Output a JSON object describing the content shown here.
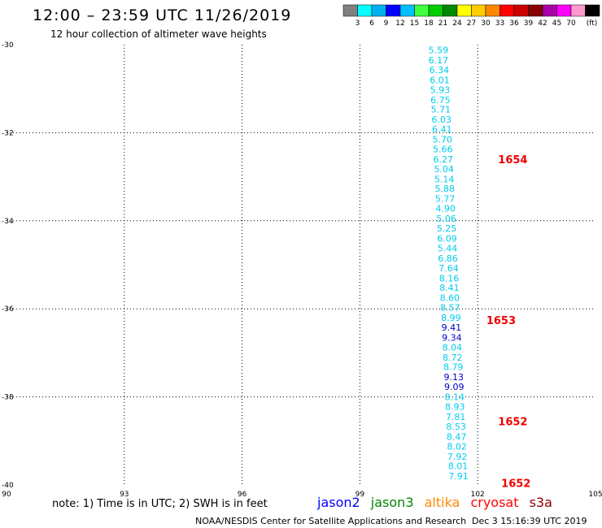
{
  "header": {
    "title": "12:00 – 23:59 UTC 11/26/2019",
    "subtitle": "12 hour collection of altimeter wave heights"
  },
  "colorbar": {
    "unit": "(ft)",
    "colors": [
      "#808080",
      "#00ffff",
      "#00b0f0",
      "#0000ff",
      "#00c0ff",
      "#40ff40",
      "#00cc00",
      "#008800",
      "#ffff00",
      "#ffcc00",
      "#ff8800",
      "#ff0000",
      "#cc0000",
      "#880000",
      "#aa00aa",
      "#ff00ff",
      "#ff99cc",
      "#000000"
    ],
    "labels": [
      "3",
      "6",
      "9",
      "12",
      "15",
      "18",
      "21",
      "24",
      "27",
      "30",
      "33",
      "36",
      "39",
      "42",
      "45",
      "70"
    ]
  },
  "chart_data": {
    "type": "scatter",
    "title": "12:00 – 23:59 UTC 11/26/2019",
    "subtitle": "12 hour collection of altimeter wave heights",
    "xlim": [
      90,
      105
    ],
    "ylim": [
      -40,
      -30
    ],
    "x_ticks": [
      "90",
      "93",
      "96",
      "99",
      "102",
      "105"
    ],
    "y_ticks": [
      "-30",
      "-32",
      "-34",
      "-36",
      "-38",
      "-40"
    ],
    "grid": true,
    "points": [
      {
        "lon": 101.0,
        "lat": -30.12,
        "swh": "5.59",
        "color": "#00ccee"
      },
      {
        "lon": 101.0,
        "lat": -30.35,
        "swh": "6.17",
        "color": "#00ccee"
      },
      {
        "lon": 101.02,
        "lat": -30.57,
        "swh": "6.34",
        "color": "#00ccee"
      },
      {
        "lon": 101.03,
        "lat": -30.8,
        "swh": "6.01",
        "color": "#00ccee"
      },
      {
        "lon": 101.04,
        "lat": -31.02,
        "swh": "5.93",
        "color": "#00ccee"
      },
      {
        "lon": 101.05,
        "lat": -31.25,
        "swh": "6.75",
        "color": "#00ccee"
      },
      {
        "lon": 101.06,
        "lat": -31.47,
        "swh": "5.71",
        "color": "#00ccee"
      },
      {
        "lon": 101.08,
        "lat": -31.7,
        "swh": "6.03",
        "color": "#00ccee"
      },
      {
        "lon": 101.09,
        "lat": -31.92,
        "swh": "6.41",
        "color": "#00ccee"
      },
      {
        "lon": 101.1,
        "lat": -32.15,
        "swh": "5.70",
        "color": "#00ccee"
      },
      {
        "lon": 101.11,
        "lat": -32.37,
        "swh": "5.66",
        "color": "#00ccee"
      },
      {
        "lon": 101.12,
        "lat": -32.6,
        "swh": "6.27",
        "color": "#00ccee"
      },
      {
        "lon": 101.14,
        "lat": -32.82,
        "swh": "5.04",
        "color": "#00ccee"
      },
      {
        "lon": 101.15,
        "lat": -33.05,
        "swh": "5.14",
        "color": "#00ccee"
      },
      {
        "lon": 101.16,
        "lat": -33.27,
        "swh": "5.88",
        "color": "#00ccee"
      },
      {
        "lon": 101.17,
        "lat": -33.5,
        "swh": "5.77",
        "color": "#00ccee"
      },
      {
        "lon": 101.18,
        "lat": -33.72,
        "swh": "4.90",
        "color": "#00ccee"
      },
      {
        "lon": 101.2,
        "lat": -33.95,
        "swh": "5.06",
        "color": "#00ccee"
      },
      {
        "lon": 101.21,
        "lat": -34.17,
        "swh": "5.25",
        "color": "#00ccee"
      },
      {
        "lon": 101.22,
        "lat": -34.4,
        "swh": "6.09",
        "color": "#00ccee"
      },
      {
        "lon": 101.23,
        "lat": -34.62,
        "swh": "5.44",
        "color": "#00ccee"
      },
      {
        "lon": 101.24,
        "lat": -34.85,
        "swh": "6.86",
        "color": "#00ccee"
      },
      {
        "lon": 101.26,
        "lat": -35.07,
        "swh": "7.64",
        "color": "#00ccee"
      },
      {
        "lon": 101.27,
        "lat": -35.3,
        "swh": "8.16",
        "color": "#00ccee"
      },
      {
        "lon": 101.28,
        "lat": -35.52,
        "swh": "8.41",
        "color": "#00ccee"
      },
      {
        "lon": 101.29,
        "lat": -35.75,
        "swh": "8.60",
        "color": "#00ccee"
      },
      {
        "lon": 101.3,
        "lat": -35.97,
        "swh": "8.57",
        "color": "#00ccee"
      },
      {
        "lon": 101.32,
        "lat": -36.2,
        "swh": "8.99",
        "color": "#00ccee"
      },
      {
        "lon": 101.33,
        "lat": -36.42,
        "swh": "9.41",
        "color": "#0000cc"
      },
      {
        "lon": 101.34,
        "lat": -36.65,
        "swh": "9.34",
        "color": "#0000cc"
      },
      {
        "lon": 101.35,
        "lat": -36.87,
        "swh": "8.04",
        "color": "#00ccee"
      },
      {
        "lon": 101.36,
        "lat": -37.1,
        "swh": "8.72",
        "color": "#00ccee"
      },
      {
        "lon": 101.38,
        "lat": -37.32,
        "swh": "8.79",
        "color": "#00ccee"
      },
      {
        "lon": 101.39,
        "lat": -37.55,
        "swh": "9.13",
        "color": "#0000cc"
      },
      {
        "lon": 101.4,
        "lat": -37.77,
        "swh": "9.09",
        "color": "#0000cc"
      },
      {
        "lon": 101.41,
        "lat": -38.0,
        "swh": "8.14",
        "color": "#00ccee"
      },
      {
        "lon": 101.42,
        "lat": -38.22,
        "swh": "8.93",
        "color": "#00ccee"
      },
      {
        "lon": 101.44,
        "lat": -38.45,
        "swh": "7.81",
        "color": "#00ccee"
      },
      {
        "lon": 101.45,
        "lat": -38.67,
        "swh": "8.53",
        "color": "#00ccee"
      },
      {
        "lon": 101.46,
        "lat": -38.9,
        "swh": "8.47",
        "color": "#00ccee"
      },
      {
        "lon": 101.47,
        "lat": -39.12,
        "swh": "8.02",
        "color": "#00ccee"
      },
      {
        "lon": 101.48,
        "lat": -39.35,
        "swh": "7.92",
        "color": "#00ccee"
      },
      {
        "lon": 101.5,
        "lat": -39.57,
        "swh": "8.01",
        "color": "#00ccee"
      },
      {
        "lon": 101.51,
        "lat": -39.8,
        "swh": "7.91",
        "color": "#00ccee"
      }
    ],
    "time_labels": [
      {
        "lon": 102.52,
        "lat": -32.6,
        "text": "1654"
      },
      {
        "lon": 102.22,
        "lat": -36.25,
        "text": "1653"
      },
      {
        "lon": 102.52,
        "lat": -38.55,
        "text": "1652"
      },
      {
        "lon": 102.6,
        "lat": -39.95,
        "text": "1652"
      }
    ]
  },
  "note": "note:  1) Time is in UTC;  2) SWH is in feet",
  "legend": [
    {
      "name": "jason2",
      "color": "#0000ff"
    },
    {
      "name": "jason3",
      "color": "#008800"
    },
    {
      "name": "altika",
      "color": "#ff8800"
    },
    {
      "name": "cryosat",
      "color": "#ff0000"
    },
    {
      "name": "s3a",
      "color": "#880000"
    }
  ],
  "footer": {
    "agency": "NOAA/NESDIS Center for Satellite Applications and Research",
    "timestamp": "Dec  3 15:16:39 UTC 2019"
  }
}
